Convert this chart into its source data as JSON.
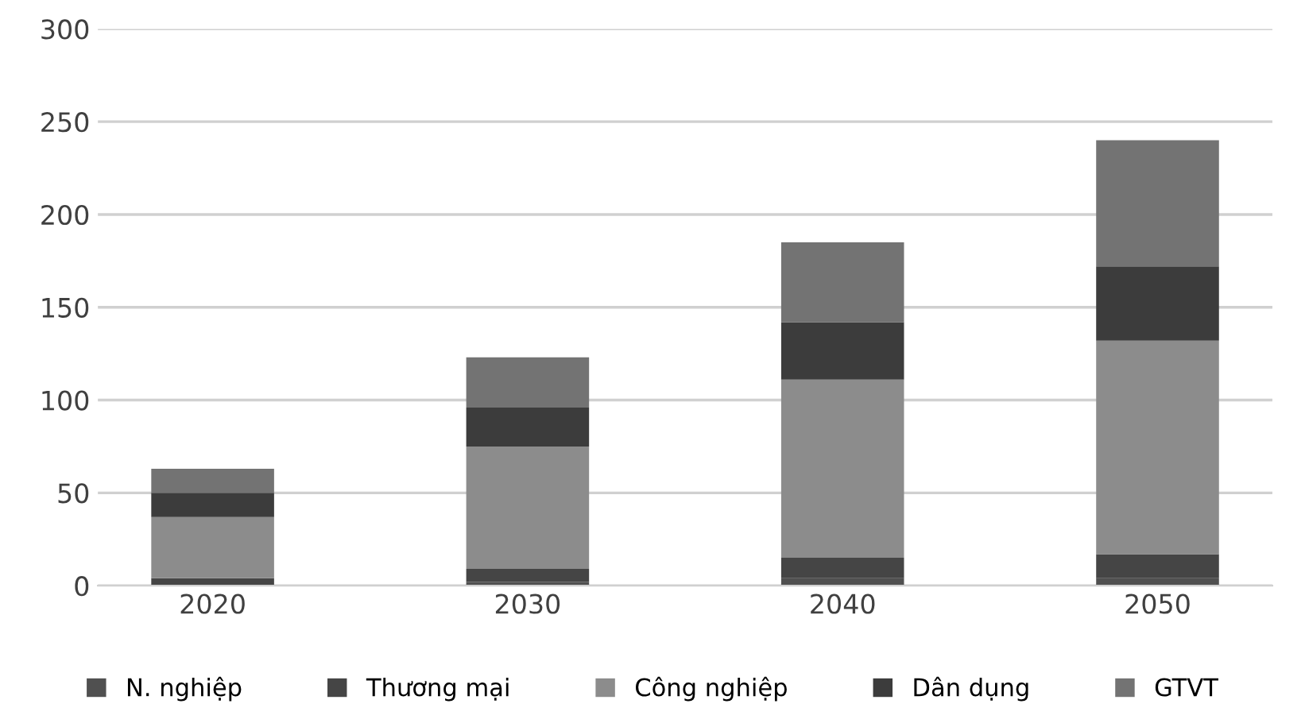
{
  "chart_data": {
    "type": "bar",
    "stacked": true,
    "categories": [
      "2020",
      "2030",
      "2040",
      "2050"
    ],
    "series": [
      {
        "name": "N. nghiệp",
        "color": "#505050",
        "values": [
          null,
          2,
          4,
          4
        ]
      },
      {
        "name": "Thương mại",
        "color": "#454545",
        "values": [
          4,
          7,
          11,
          13
        ]
      },
      {
        "name": "Công nghiệp",
        "color": "#8c8c8c",
        "values": [
          33,
          66,
          96,
          115
        ]
      },
      {
        "name": "Dân dụng",
        "color": "#3c3c3c",
        "values": [
          13,
          21,
          31,
          40
        ]
      },
      {
        "name": "GTVT",
        "color": "#737373",
        "values": [
          13,
          27,
          43,
          68
        ]
      }
    ],
    "ylim": [
      0,
      300
    ],
    "yticks": [
      0,
      50,
      100,
      150,
      200,
      250,
      300
    ],
    "grid": "y",
    "legend": "bottom"
  }
}
